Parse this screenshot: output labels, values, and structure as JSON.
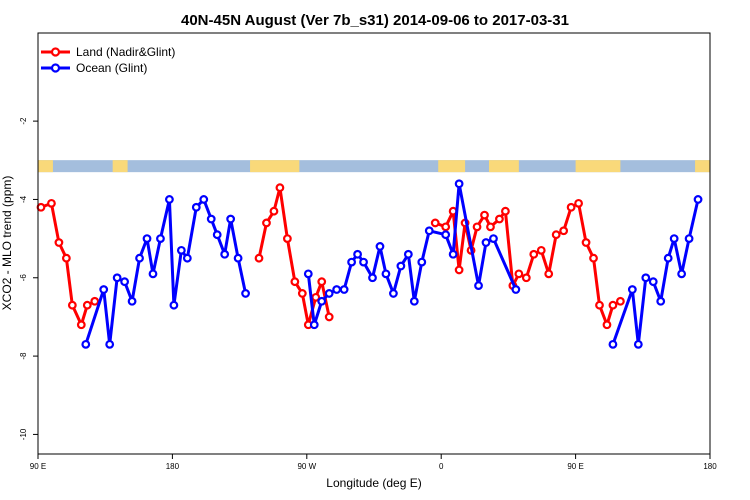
{
  "chart_data": {
    "type": "line",
    "title": "40N-45N August (Ver 7b_s31)   2014-09-06 to 2017-03-31",
    "xlabel": "Longitude (deg E)",
    "ylabel": "XCO2 - MLO trend (ppm)",
    "x_ticks": [
      {
        "value": 90,
        "label": "90 E"
      },
      {
        "value": 180,
        "label": "180"
      },
      {
        "value": 270,
        "label": "90 W"
      },
      {
        "value": 360,
        "label": "0"
      },
      {
        "value": 450,
        "label": "90 E"
      },
      {
        "value": 540,
        "label": "180"
      }
    ],
    "y_ticks": [
      {
        "value": -2,
        "label": "-2"
      },
      {
        "value": -4,
        "label": "-4"
      },
      {
        "value": -6,
        "label": "-6"
      },
      {
        "value": -8,
        "label": "-8"
      },
      {
        "value": -10,
        "label": "-10"
      }
    ],
    "xlim": [
      90,
      540
    ],
    "ylim": [
      -10.5,
      0.25
    ],
    "legend_position": "top-left",
    "land_band_y": -3.15,
    "land_segments": [
      [
        90,
        100
      ],
      [
        140,
        150
      ],
      [
        232,
        265
      ],
      [
        358,
        376
      ],
      [
        392,
        412
      ],
      [
        450,
        480
      ],
      [
        530,
        540
      ]
    ],
    "series": [
      {
        "name": "Land (Nadir&Glint)",
        "color": "#ff0000",
        "points": [
          [
            92,
            -4.2
          ],
          [
            99,
            -4.1
          ],
          [
            104,
            -5.1
          ],
          [
            109,
            -5.5
          ],
          [
            113,
            -6.7
          ],
          [
            119,
            -7.2
          ],
          [
            123,
            -6.7
          ],
          [
            128,
            -6.6
          ],
          null,
          [
            238,
            -5.5
          ],
          [
            243,
            -4.6
          ],
          [
            248,
            -4.3
          ],
          [
            252,
            -3.7
          ],
          [
            257,
            -5.0
          ],
          [
            262,
            -6.1
          ],
          [
            267,
            -6.4
          ],
          [
            271,
            -7.2
          ],
          [
            276,
            -6.5
          ],
          [
            280,
            -6.1
          ],
          [
            285,
            -7.0
          ],
          null,
          [
            356,
            -4.6
          ],
          [
            363,
            -4.7
          ],
          [
            368,
            -4.3
          ],
          [
            372,
            -5.8
          ],
          [
            376,
            -4.6
          ],
          [
            380,
            -5.3
          ],
          [
            384,
            -4.7
          ],
          [
            389,
            -4.4
          ],
          [
            393,
            -4.7
          ],
          [
            399,
            -4.5
          ],
          [
            403,
            -4.3
          ],
          [
            408,
            -6.2
          ],
          [
            412,
            -5.9
          ],
          [
            417,
            -6.0
          ],
          [
            422,
            -5.4
          ],
          [
            427,
            -5.3
          ],
          [
            432,
            -5.9
          ],
          [
            437,
            -4.9
          ],
          [
            442,
            -4.8
          ],
          [
            447,
            -4.2
          ],
          [
            452,
            -4.1
          ],
          [
            457,
            -5.1
          ],
          [
            462,
            -5.5
          ],
          [
            466,
            -6.7
          ],
          [
            471,
            -7.2
          ],
          [
            475,
            -6.7
          ],
          [
            480,
            -6.6
          ]
        ]
      },
      {
        "name": "Ocean (Glint)",
        "color": "#0000ff",
        "points": [
          [
            122,
            -7.7
          ],
          [
            134,
            -6.3
          ],
          [
            138,
            -7.7
          ],
          [
            143,
            -6.0
          ],
          [
            148,
            -6.1
          ],
          [
            153,
            -6.6
          ],
          [
            158,
            -5.5
          ],
          [
            163,
            -5.0
          ],
          [
            167,
            -5.9
          ],
          [
            172,
            -5.0
          ],
          [
            178,
            -4.0
          ],
          [
            181,
            -6.7
          ],
          [
            186,
            -5.3
          ],
          [
            190,
            -5.5
          ],
          [
            196,
            -4.2
          ],
          [
            201,
            -4.0
          ],
          [
            206,
            -4.5
          ],
          [
            210,
            -4.9
          ],
          [
            215,
            -5.4
          ],
          [
            219,
            -4.5
          ],
          [
            224,
            -5.5
          ],
          [
            229,
            -6.4
          ],
          null,
          [
            271,
            -5.9
          ],
          [
            275,
            -7.2
          ],
          [
            280,
            -6.6
          ],
          [
            285,
            -6.4
          ],
          [
            290,
            -6.3
          ],
          [
            295,
            -6.3
          ],
          [
            300,
            -5.6
          ],
          [
            304,
            -5.4
          ],
          [
            308,
            -5.6
          ],
          [
            314,
            -6.0
          ],
          [
            319,
            -5.2
          ],
          [
            323,
            -5.9
          ],
          [
            328,
            -6.4
          ],
          [
            333,
            -5.7
          ],
          [
            338,
            -5.4
          ],
          [
            342,
            -6.6
          ],
          [
            347,
            -5.6
          ],
          [
            352,
            -4.8
          ],
          [
            363,
            -4.9
          ],
          [
            368,
            -5.4
          ],
          [
            372,
            -3.6
          ],
          [
            385,
            -6.2
          ],
          [
            390,
            -5.1
          ],
          [
            395,
            -5.0
          ],
          [
            410,
            -6.3
          ],
          null,
          [
            475,
            -7.7
          ],
          [
            488,
            -6.3
          ],
          [
            492,
            -7.7
          ],
          [
            497,
            -6.0
          ],
          [
            502,
            -6.1
          ],
          [
            507,
            -6.6
          ],
          [
            512,
            -5.5
          ],
          [
            516,
            -5.0
          ],
          [
            521,
            -5.9
          ],
          [
            526,
            -5.0
          ],
          [
            532,
            -4.0
          ]
        ]
      }
    ]
  }
}
